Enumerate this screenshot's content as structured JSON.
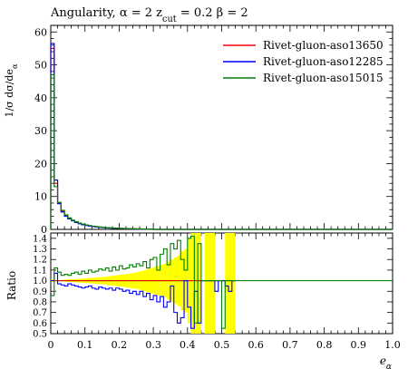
{
  "chart_data": {
    "type": "line",
    "title": "Angularity, α = 2 z_cut = 0.2 β = 2",
    "xlabel": "e_α",
    "ylabel": "1/σ dσ/de_α",
    "ratio_ylabel": "Ratio",
    "xlim": [
      0,
      1
    ],
    "ylim": [
      0,
      62
    ],
    "ratio_ylim": [
      0.5,
      1.45
    ],
    "x_ticks": [
      0,
      0.1,
      0.2,
      0.3,
      0.4,
      0.5,
      0.6,
      0.7,
      0.8,
      0.9,
      1.0
    ],
    "x_tick_labels": [
      "0",
      "0.1",
      "0.2",
      "0.3",
      "0.4",
      "0.5",
      "0.6",
      "0.7",
      "0.8",
      "0.9",
      "1.0"
    ],
    "y_ticks": [
      0,
      10,
      20,
      30,
      40,
      50,
      60
    ],
    "y_tick_labels": [
      "0",
      "10",
      "20",
      "30",
      "40",
      "50",
      "60"
    ],
    "ratio_ticks": [
      0.5,
      0.6,
      0.7,
      0.8,
      0.9,
      1.0,
      1.1,
      1.2,
      1.3,
      1.4
    ],
    "ratio_tick_labels": [
      "0.5",
      "0.6",
      "0.7",
      "0.8",
      "0.9",
      "1.0",
      "1.1",
      "1.2",
      "1.3",
      "1.4"
    ],
    "legend_position": "top-right",
    "grid": false,
    "band_color": "#ffff00",
    "x": [
      0.005,
      0.015,
      0.025,
      0.035,
      0.045,
      0.055,
      0.065,
      0.075,
      0.085,
      0.095,
      0.105,
      0.115,
      0.125,
      0.135,
      0.145,
      0.155,
      0.165,
      0.175,
      0.185,
      0.195,
      0.205,
      0.215,
      0.225,
      0.235,
      0.245,
      0.255,
      0.265,
      0.275,
      0.285,
      0.295
    ],
    "series": [
      {
        "name": "Rivet-gluon-aso13650",
        "color": "#ff0000",
        "values": [
          55.0,
          14.0,
          8.0,
          5.5,
          4.2,
          3.3,
          2.7,
          2.2,
          1.8,
          1.5,
          1.25,
          1.05,
          0.9,
          0.78,
          0.67,
          0.58,
          0.5,
          0.43,
          0.37,
          0.32,
          0.28,
          0.24,
          0.21,
          0.18,
          0.16,
          0.14,
          0.12,
          0.1,
          0.09,
          0.08
        ]
      },
      {
        "name": "Rivet-gluon-aso12285",
        "color": "#0000ff",
        "values": [
          56.5,
          15.0,
          7.8,
          5.3,
          4.0,
          3.2,
          2.6,
          2.1,
          1.7,
          1.4,
          1.2,
          1.0,
          0.85,
          0.72,
          0.63,
          0.54,
          0.46,
          0.4,
          0.34,
          0.3,
          0.26,
          0.22,
          0.19,
          0.17,
          0.15,
          0.13,
          0.11,
          0.09,
          0.08,
          0.07
        ]
      },
      {
        "name": "Rivet-gluon-aso15015",
        "color": "#008000",
        "values": [
          47.0,
          13.0,
          8.2,
          5.8,
          4.4,
          3.5,
          2.8,
          2.3,
          1.9,
          1.6,
          1.35,
          1.15,
          0.98,
          0.84,
          0.72,
          0.62,
          0.54,
          0.47,
          0.41,
          0.36,
          0.31,
          0.27,
          0.23,
          0.2,
          0.18,
          0.16,
          0.13,
          0.11,
          0.1,
          0.09
        ]
      }
    ],
    "ratio": {
      "x_edges": [
        0,
        0.01,
        0.02,
        0.03,
        0.04,
        0.05,
        0.06,
        0.07,
        0.08,
        0.09,
        0.1,
        0.11,
        0.12,
        0.13,
        0.14,
        0.15,
        0.16,
        0.17,
        0.18,
        0.19,
        0.2,
        0.21,
        0.22,
        0.23,
        0.24,
        0.25,
        0.26,
        0.27,
        0.28,
        0.29,
        0.3,
        0.31,
        0.32,
        0.33,
        0.34,
        0.35,
        0.36,
        0.37,
        0.38,
        0.39,
        0.4,
        0.41,
        0.42,
        0.43,
        0.44,
        0.45,
        0.46,
        0.47,
        0.48,
        0.49,
        0.5,
        0.51,
        0.52,
        0.53,
        0.54
      ],
      "band_halfwidth": [
        0.01,
        0.005,
        0.006,
        0.008,
        0.01,
        0.012,
        0.014,
        0.016,
        0.018,
        0.02,
        0.022,
        0.025,
        0.028,
        0.03,
        0.033,
        0.036,
        0.04,
        0.044,
        0.048,
        0.052,
        0.056,
        0.06,
        0.065,
        0.07,
        0.075,
        0.08,
        0.09,
        0.1,
        0.11,
        0.12,
        0.13,
        0.14,
        0.15,
        0.16,
        0.18,
        0.2,
        0.22,
        0.24,
        0.28,
        0.3,
        0.4,
        0.5,
        0.5,
        0.5,
        0.0,
        0.5,
        0.5,
        0.5,
        0.0,
        0.0,
        0.0,
        0.5,
        0.5,
        0.5
      ],
      "series": [
        {
          "name": "Rivet-gluon-aso12285",
          "color": "#0000ff",
          "values": [
            1.0,
            1.07,
            0.97,
            0.96,
            0.95,
            0.97,
            0.96,
            0.95,
            0.94,
            0.93,
            0.94,
            0.95,
            0.93,
            0.92,
            0.94,
            0.93,
            0.92,
            0.93,
            0.91,
            0.93,
            0.92,
            0.9,
            0.91,
            0.88,
            0.9,
            0.87,
            0.9,
            0.85,
            0.88,
            0.82,
            0.86,
            0.8,
            0.85,
            0.75,
            0.8,
            0.95,
            0.7,
            0.6,
            0.65,
            1.0,
            0.75,
            0.55,
            0.9,
            0.6,
            1.0,
            1.0,
            1.0,
            1.0,
            0.9,
            1.0,
            1.0,
            0.95,
            0.9,
            1.0
          ]
        },
        {
          "name": "Rivet-gluon-aso15015",
          "color": "#008000",
          "values": [
            0.86,
            1.12,
            1.08,
            1.05,
            1.06,
            1.05,
            1.07,
            1.08,
            1.06,
            1.09,
            1.07,
            1.1,
            1.08,
            1.09,
            1.11,
            1.1,
            1.12,
            1.09,
            1.13,
            1.1,
            1.14,
            1.11,
            1.12,
            1.15,
            1.13,
            1.16,
            1.14,
            1.18,
            1.12,
            1.2,
            1.22,
            1.1,
            1.25,
            1.3,
            1.15,
            1.35,
            1.3,
            1.38,
            1.2,
            1.1,
            1.4,
            1.42,
            0.6,
            1.35,
            1.0,
            1.0,
            1.0,
            1.0,
            1.0,
            1.0,
            0.55,
            1.0,
            1.0,
            1.0
          ]
        }
      ]
    }
  }
}
